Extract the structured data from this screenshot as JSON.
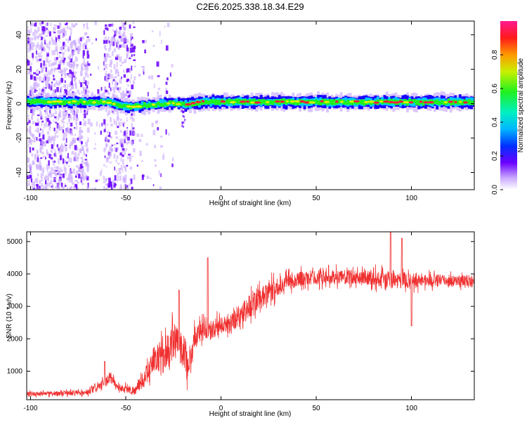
{
  "title": "C2E6.2025.338.18.34.E29",
  "colors": {
    "ridge_low": "#1a00ff",
    "ridge_high": "#ff1a3c",
    "scatter_light": "#c9a8ff",
    "scatter_dark": "#6a00ff",
    "snr_line": "#f03030"
  },
  "chart_data": [
    {
      "type": "heatmap",
      "name": "spectrogram",
      "xlabel": "Height of straight line (km)",
      "ylabel": "Frequency (Hz)",
      "xlim": [
        -102,
        133
      ],
      "ylim": [
        -50,
        48
      ],
      "xticks": [
        -100,
        -50,
        0,
        50,
        100
      ],
      "xtick_labels": [
        "-100",
        "-50",
        "0",
        "50",
        "100"
      ],
      "yticks": [
        -40,
        -20,
        0,
        20,
        40
      ],
      "ytick_labels": [
        "-40",
        "-20",
        "0",
        "20",
        "40"
      ],
      "ridge_frequency_hz": [
        {
          "x": -100,
          "f": 1.0
        },
        {
          "x": -60,
          "f": 1.0
        },
        {
          "x": -50,
          "f": -2.0
        },
        {
          "x": -40,
          "f": -1.0
        },
        {
          "x": -25,
          "f": 0.5
        },
        {
          "x": -20,
          "f": -0.5
        },
        {
          "x": -10,
          "f": 1.0
        },
        {
          "x": 133,
          "f": 1.0
        }
      ],
      "colorbar": {
        "label": "Normalized spectral amplitude",
        "range": [
          0,
          1
        ],
        "ticks": [
          0.0,
          0.2,
          0.4,
          0.6,
          0.8
        ],
        "tick_labels": [
          "0.0",
          "0.2",
          "0.4",
          "0.6",
          "0.8"
        ]
      }
    },
    {
      "type": "line",
      "name": "snr",
      "xlabel": "Height of straight line (km)",
      "ylabel": "SNR (10 * v/v)",
      "xlim": [
        -102,
        133
      ],
      "ylim": [
        120,
        5300
      ],
      "xticks": [
        -100,
        -50,
        0,
        50,
        100
      ],
      "xtick_labels": [
        "-100",
        "-50",
        "0",
        "50",
        "100"
      ],
      "yticks": [
        1000,
        2000,
        3000,
        4000,
        5000
      ],
      "ytick_labels": [
        "1000",
        "2000",
        "3000",
        "4000",
        "5000"
      ],
      "envelope": [
        {
          "x": -102,
          "y": 300,
          "noise": 120
        },
        {
          "x": -70,
          "y": 330,
          "noise": 150
        },
        {
          "x": -62,
          "y": 600,
          "noise": 250
        },
        {
          "x": -58,
          "y": 800,
          "noise": 300
        },
        {
          "x": -54,
          "y": 500,
          "noise": 200
        },
        {
          "x": -45,
          "y": 400,
          "noise": 250
        },
        {
          "x": -40,
          "y": 800,
          "noise": 500
        },
        {
          "x": -35,
          "y": 1400,
          "noise": 700
        },
        {
          "x": -30,
          "y": 1500,
          "noise": 900
        },
        {
          "x": -25,
          "y": 1900,
          "noise": 1000
        },
        {
          "x": -20,
          "y": 1700,
          "noise": 1000
        },
        {
          "x": -17,
          "y": 1200,
          "noise": 900
        },
        {
          "x": -13,
          "y": 2200,
          "noise": 600
        },
        {
          "x": -5,
          "y": 2300,
          "noise": 500
        },
        {
          "x": 5,
          "y": 2500,
          "noise": 600
        },
        {
          "x": 15,
          "y": 3000,
          "noise": 700
        },
        {
          "x": 25,
          "y": 3400,
          "noise": 600
        },
        {
          "x": 35,
          "y": 3800,
          "noise": 450
        },
        {
          "x": 50,
          "y": 3900,
          "noise": 400
        },
        {
          "x": 75,
          "y": 3900,
          "noise": 400
        },
        {
          "x": 90,
          "y": 3800,
          "noise": 500
        },
        {
          "x": 110,
          "y": 3800,
          "noise": 350
        },
        {
          "x": 133,
          "y": 3800,
          "noise": 300
        }
      ],
      "spikes": [
        {
          "x": -61,
          "y": 1300
        },
        {
          "x": -22,
          "y": 3500
        },
        {
          "x": -7,
          "y": 4500
        },
        {
          "x": 89,
          "y": 5300
        },
        {
          "x": 95,
          "y": 5100
        },
        {
          "x": 100,
          "y": 2400
        }
      ]
    }
  ]
}
